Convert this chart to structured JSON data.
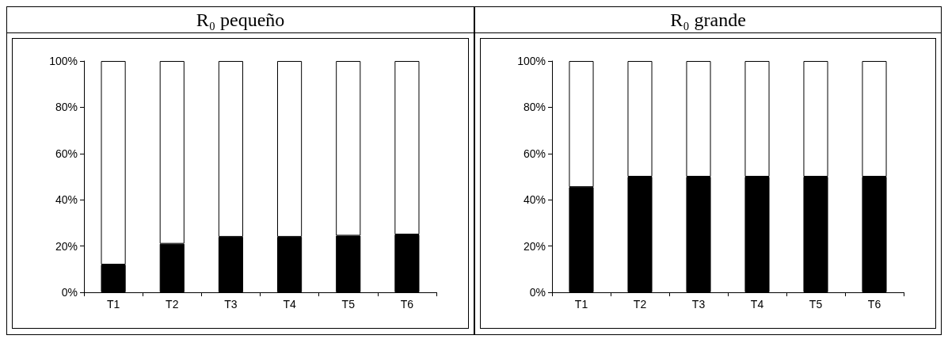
{
  "chart_data": [
    {
      "type": "bar",
      "title": "R₀ pequeño",
      "stacked": true,
      "categories": [
        "T1",
        "T2",
        "T3",
        "T4",
        "T5",
        "T6"
      ],
      "series": [
        {
          "color": "#000000",
          "values": [
            12,
            21,
            24,
            24,
            24.5,
            25
          ]
        },
        {
          "color": "#ffffff",
          "values": [
            88,
            79,
            76,
            76,
            75.5,
            75
          ]
        }
      ],
      "ylim": [
        0,
        100
      ],
      "yticks": [
        {
          "value": 0,
          "label": "0%"
        },
        {
          "value": 20,
          "label": "20%"
        },
        {
          "value": 40,
          "label": "40%"
        },
        {
          "value": 60,
          "label": "60%"
        },
        {
          "value": 80,
          "label": "80%"
        },
        {
          "value": 100,
          "label": "100%"
        }
      ],
      "grid": false
    },
    {
      "type": "bar",
      "title": "R₀ grande",
      "stacked": true,
      "categories": [
        "T1",
        "T2",
        "T3",
        "T4",
        "T5",
        "T6"
      ],
      "series": [
        {
          "color": "#000000",
          "values": [
            45.5,
            50,
            50,
            50,
            50,
            50
          ]
        },
        {
          "color": "#ffffff",
          "values": [
            54.5,
            50,
            50,
            50,
            50,
            50
          ]
        }
      ],
      "ylim": [
        0,
        100
      ],
      "yticks": [
        {
          "value": 0,
          "label": "0%"
        },
        {
          "value": 20,
          "label": "20%"
        },
        {
          "value": 40,
          "label": "40%"
        },
        {
          "value": 60,
          "label": "60%"
        },
        {
          "value": 80,
          "label": "80%"
        },
        {
          "value": 100,
          "label": "100%"
        }
      ],
      "grid": false
    }
  ]
}
